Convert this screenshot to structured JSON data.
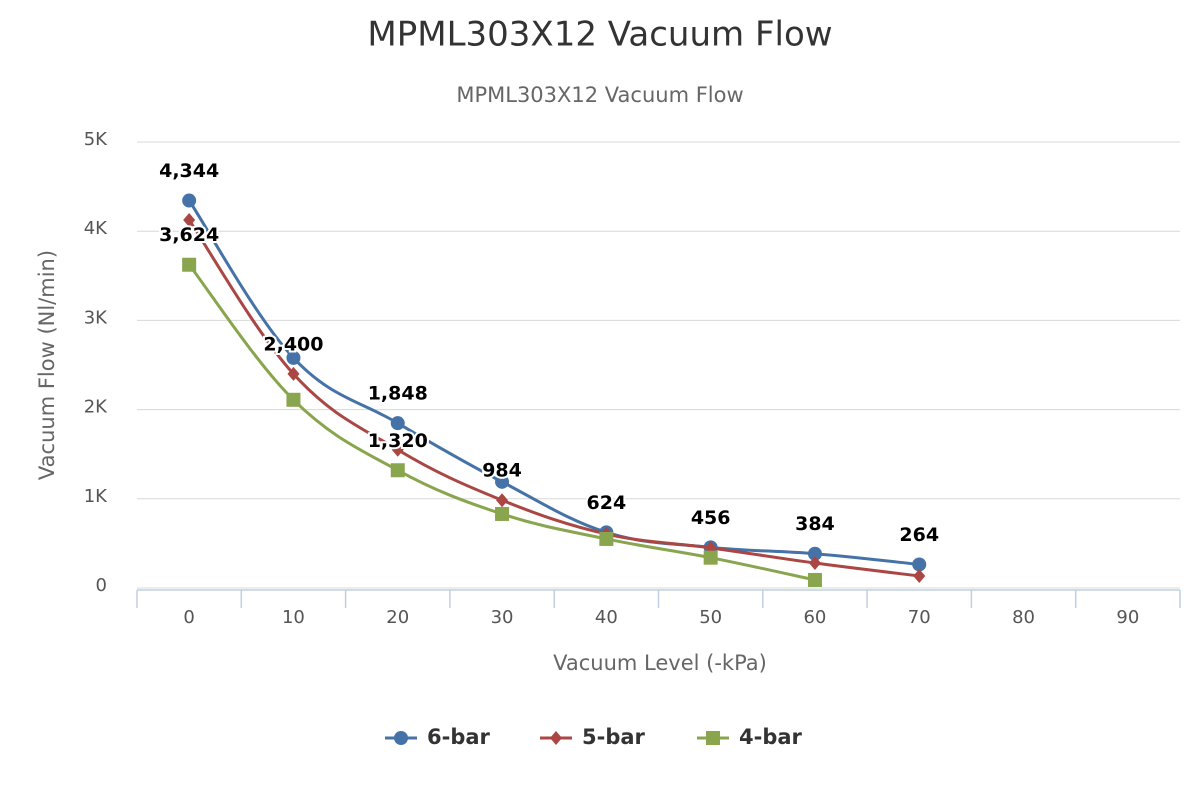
{
  "chart_data": {
    "type": "line",
    "title": "MPML303X12 Vacuum Flow",
    "subtitle": "MPML303X12 Vacuum Flow",
    "x_label": "Vacuum Level (-kPa)",
    "y_label": "Vacuum Flow (Nl/min)",
    "categories": [
      "0",
      "10",
      "20",
      "30",
      "40",
      "50",
      "60",
      "70",
      "80",
      "90"
    ],
    "series": [
      {
        "name": "6-bar",
        "color": "#4572a7",
        "marker": "circle",
        "values": [
          4344,
          2580,
          1848,
          1190,
          624,
          456,
          384,
          264,
          null,
          null
        ],
        "value_labels": [
          "4,344",
          null,
          "1,848",
          null,
          "624",
          "456",
          "384",
          "264",
          null,
          null
        ]
      },
      {
        "name": "5-bar",
        "color": "#aa4643",
        "marker": "diamond",
        "values": [
          4125,
          2400,
          1550,
          984,
          605,
          450,
          280,
          135,
          null,
          null
        ],
        "value_labels": [
          null,
          "2,400",
          null,
          "984",
          null,
          null,
          null,
          null,
          null,
          null
        ]
      },
      {
        "name": "4-bar",
        "color": "#89a54e",
        "marker": "square",
        "values": [
          3624,
          2110,
          1320,
          830,
          550,
          340,
          90,
          null,
          null,
          null
        ],
        "value_labels": [
          "3,624",
          null,
          "1,320",
          null,
          null,
          null,
          null,
          null,
          null,
          null
        ]
      }
    ],
    "ylim": [
      0,
      5000
    ],
    "yticks": [
      0,
      {
        "value": 1000,
        "label": "1K"
      },
      {
        "value": 2000,
        "label": "2K"
      },
      {
        "value": 3000,
        "label": "3K"
      },
      {
        "value": 4000,
        "label": "4K"
      },
      {
        "value": 5000,
        "label": "5K"
      }
    ],
    "grid": true,
    "legend": "bottom"
  }
}
